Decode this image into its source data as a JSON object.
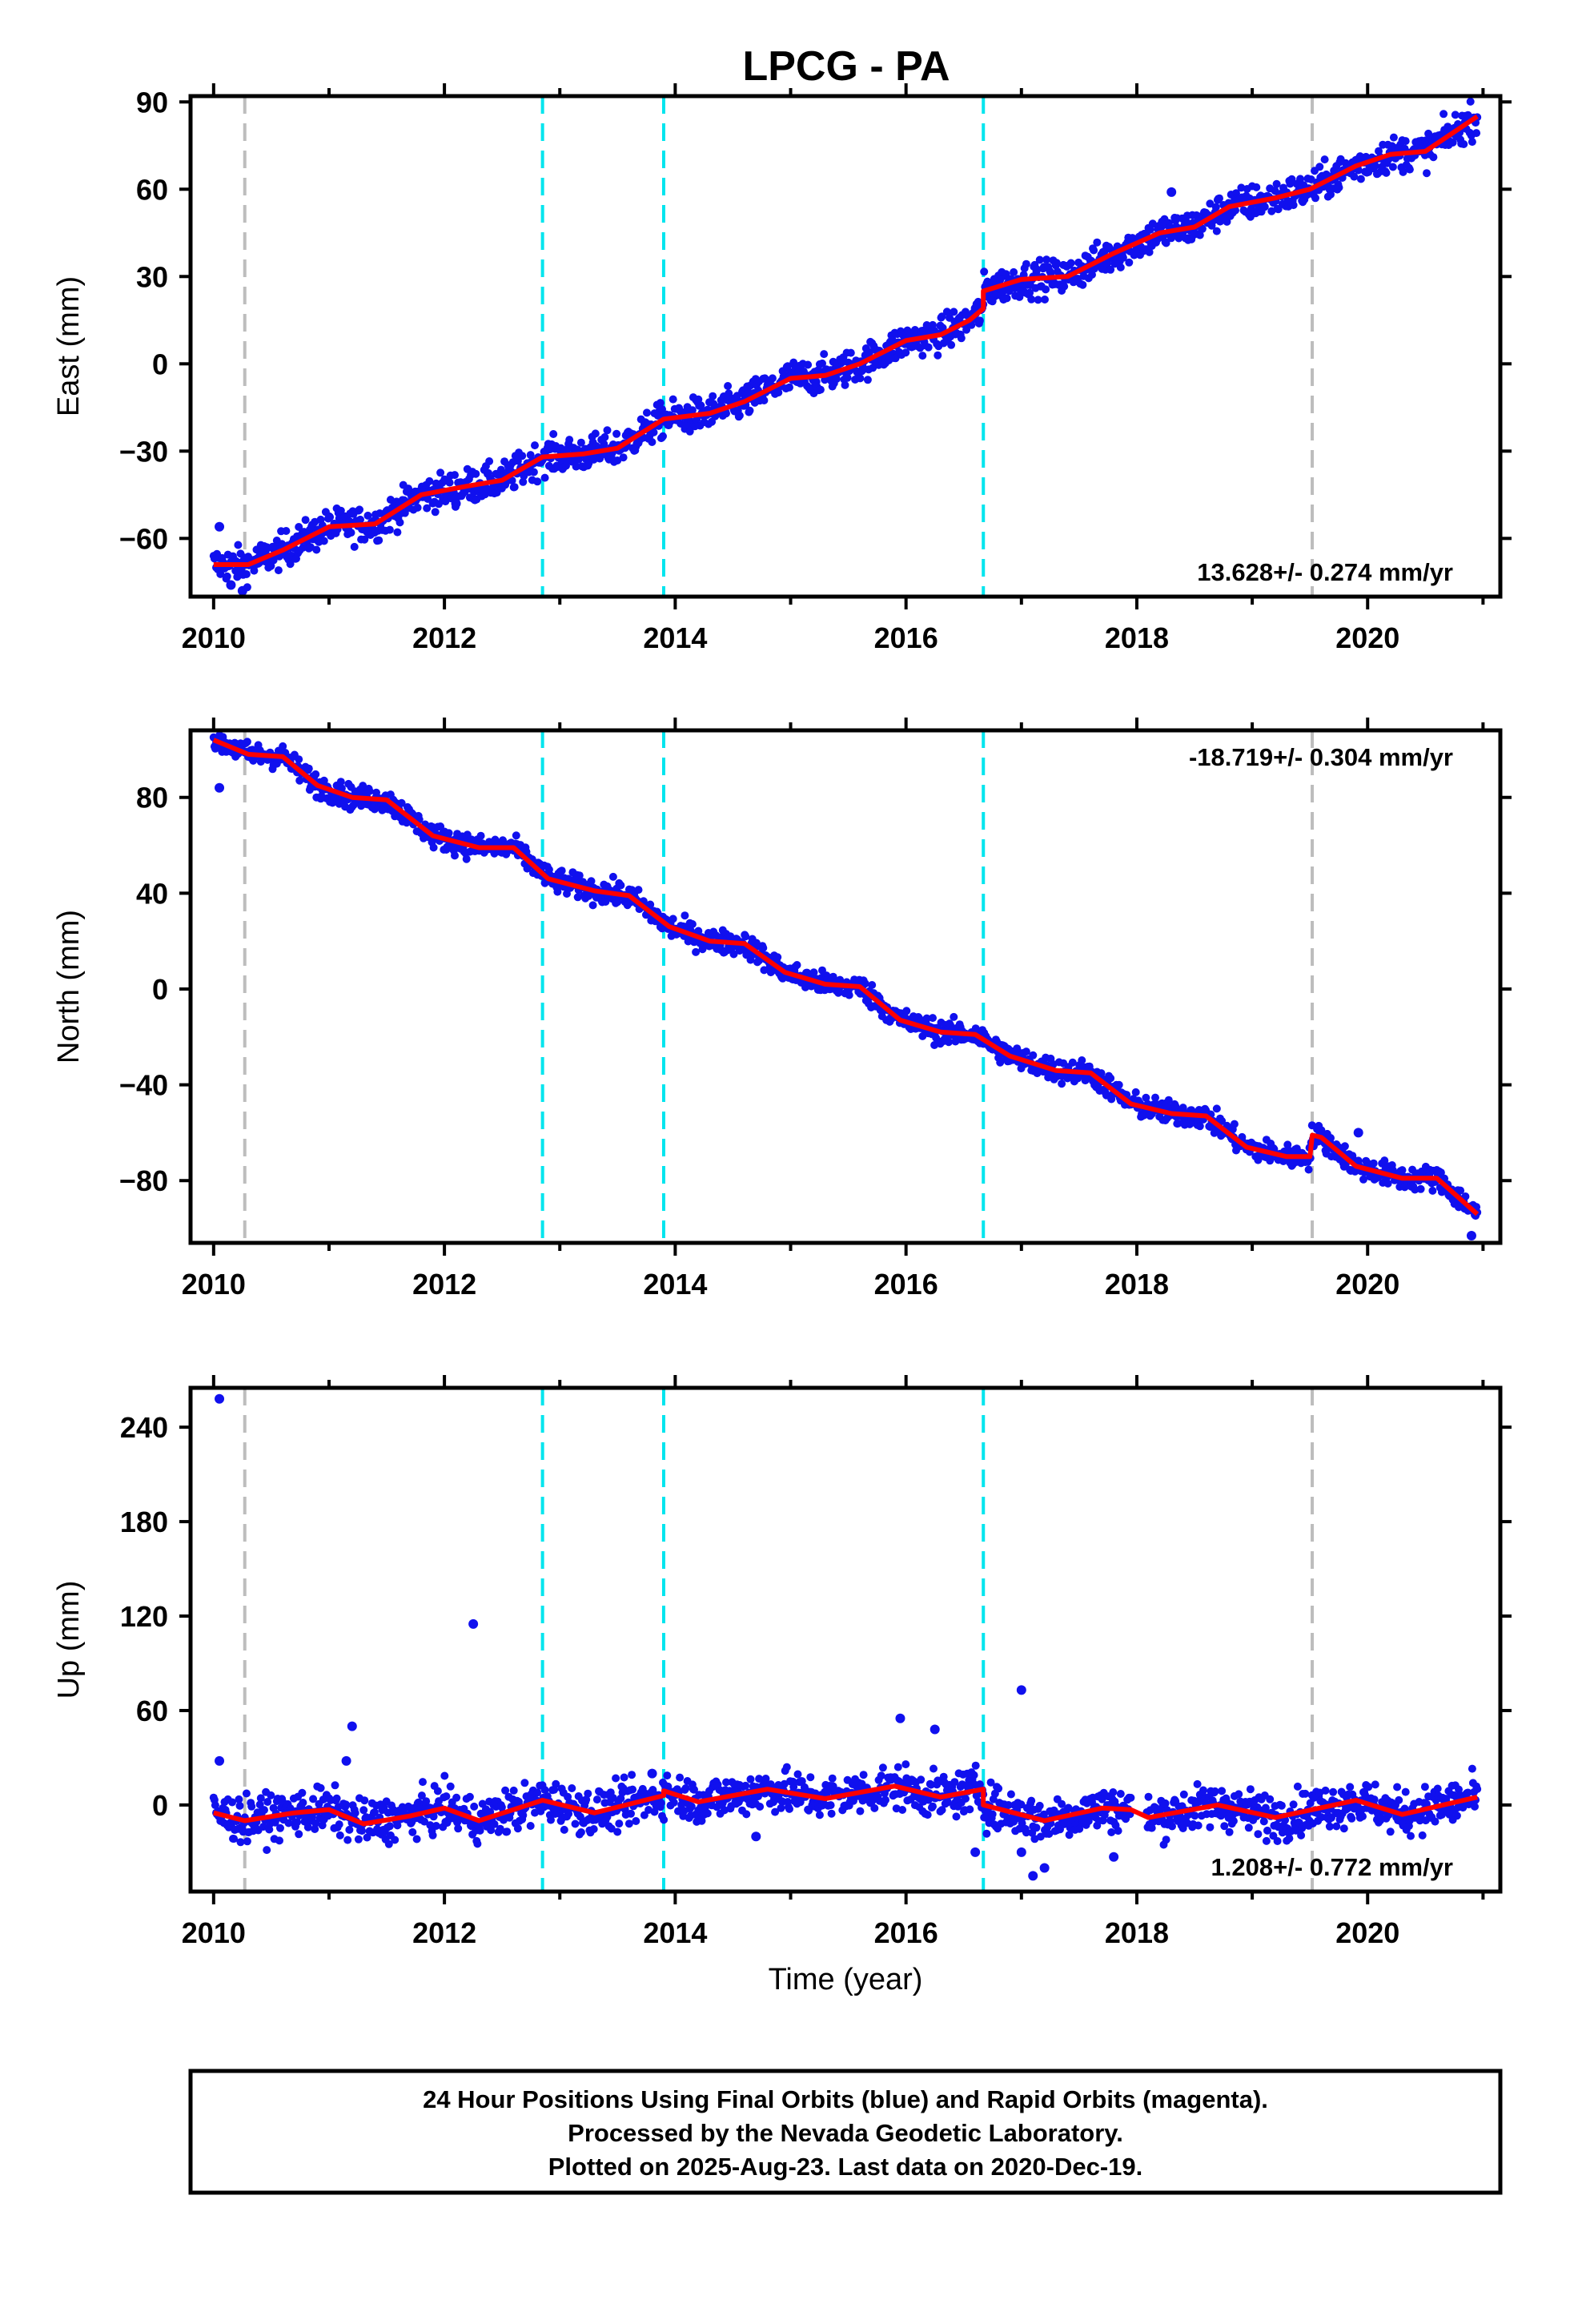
{
  "title": "LPCG - PA",
  "caption": {
    "lines": [
      "24 Hour Positions Using Final Orbits (blue) and Rapid Orbits (magenta).",
      "Processed by the Nevada Geodetic Laboratory.",
      "Plotted on 2025-Aug-23. Last data on 2020-Dec-19."
    ]
  },
  "colors": {
    "points": "#1010ee",
    "fit": "#ff0000",
    "equipment_change": "#00e5ee",
    "earthquake": "#bdbdbd"
  },
  "chart_data": [
    {
      "type": "scatter",
      "ylabel": "East (mm)",
      "xlabel": "",
      "xlim": [
        2009.8,
        2021.15
      ],
      "ylim": [
        -80,
        92
      ],
      "xticks": [
        "2010",
        "2012",
        "2014",
        "2016",
        "2018",
        "2020"
      ],
      "xtick_values": [
        2010,
        2012,
        2014,
        2016,
        2018,
        2020
      ],
      "yticks": [
        "−60",
        "−30",
        "0",
        "30",
        "60",
        "90"
      ],
      "ytick_values": [
        -60,
        -30,
        0,
        30,
        60,
        90
      ],
      "rate_text": "13.628+/- 0.274 mm/yr",
      "rate_position": "bottom-right",
      "noise": 3,
      "fit": [
        [
          2010.0,
          -69
        ],
        [
          2010.3,
          -69
        ],
        [
          2010.6,
          -64
        ],
        [
          2011.0,
          -56
        ],
        [
          2011.4,
          -55
        ],
        [
          2011.8,
          -45
        ],
        [
          2012.2,
          -42
        ],
        [
          2012.5,
          -40
        ],
        [
          2012.85,
          -32
        ],
        [
          2013.2,
          -31
        ],
        [
          2013.5,
          -29
        ],
        [
          2013.9,
          -19
        ],
        [
          2014.3,
          -17
        ],
        [
          2014.6,
          -13
        ],
        [
          2015.0,
          -5
        ],
        [
          2015.3,
          -4
        ],
        [
          2015.6,
          0
        ],
        [
          2016.0,
          8
        ],
        [
          2016.3,
          10
        ],
        [
          2016.55,
          15
        ],
        [
          2016.67,
          19
        ],
        [
          2016.67,
          25
        ],
        [
          2017.0,
          29
        ],
        [
          2017.4,
          30
        ],
        [
          2017.8,
          38
        ],
        [
          2018.2,
          45
        ],
        [
          2018.5,
          47
        ],
        [
          2018.8,
          54
        ],
        [
          2019.2,
          57
        ],
        [
          2019.5,
          60
        ],
        [
          2019.9,
          68
        ],
        [
          2020.2,
          72
        ],
        [
          2020.5,
          73
        ],
        [
          2020.95,
          85
        ]
      ],
      "outliers": [
        [
          2010.05,
          -56
        ],
        [
          2010.15,
          -76
        ],
        [
          2010.25,
          -78
        ],
        [
          2018.3,
          59
        ],
        [
          2012.1,
          -48
        ]
      ],
      "vlines": [
        {
          "x": 2010.27,
          "kind": "earthquake"
        },
        {
          "x": 2012.85,
          "kind": "equipment_change"
        },
        {
          "x": 2013.9,
          "kind": "equipment_change"
        },
        {
          "x": 2016.67,
          "kind": "equipment_change"
        },
        {
          "x": 2019.52,
          "kind": "earthquake"
        }
      ]
    },
    {
      "type": "scatter",
      "ylabel": "North (mm)",
      "xlabel": "",
      "xlim": [
        2009.8,
        2021.15
      ],
      "ylim": [
        -106,
        108
      ],
      "xticks": [
        "2010",
        "2012",
        "2014",
        "2016",
        "2018",
        "2020"
      ],
      "xtick_values": [
        2010,
        2012,
        2014,
        2016,
        2018,
        2020
      ],
      "yticks": [
        "−80",
        "−40",
        "0",
        "40",
        "80"
      ],
      "ytick_values": [
        -80,
        -40,
        0,
        40,
        80
      ],
      "rate_text": "-18.719+/- 0.304 mm/yr",
      "rate_position": "top-right",
      "noise": 2.5,
      "fit": [
        [
          2010.0,
          104
        ],
        [
          2010.3,
          98
        ],
        [
          2010.6,
          97
        ],
        [
          2010.9,
          85
        ],
        [
          2011.2,
          80
        ],
        [
          2011.5,
          79
        ],
        [
          2011.9,
          64
        ],
        [
          2012.3,
          59
        ],
        [
          2012.6,
          59
        ],
        [
          2012.9,
          46
        ],
        [
          2013.3,
          41
        ],
        [
          2013.6,
          39
        ],
        [
          2013.95,
          26
        ],
        [
          2014.3,
          20
        ],
        [
          2014.6,
          19
        ],
        [
          2014.95,
          7
        ],
        [
          2015.3,
          2
        ],
        [
          2015.6,
          1
        ],
        [
          2015.95,
          -13
        ],
        [
          2016.3,
          -18
        ],
        [
          2016.6,
          -19
        ],
        [
          2016.9,
          -28
        ],
        [
          2017.3,
          -34
        ],
        [
          2017.6,
          -35
        ],
        [
          2017.95,
          -48
        ],
        [
          2018.3,
          -52
        ],
        [
          2018.6,
          -53
        ],
        [
          2018.95,
          -66
        ],
        [
          2019.3,
          -70
        ],
        [
          2019.5,
          -70
        ],
        [
          2019.52,
          -61
        ],
        [
          2019.6,
          -62
        ],
        [
          2019.9,
          -74
        ],
        [
          2020.3,
          -79
        ],
        [
          2020.6,
          -79
        ],
        [
          2020.95,
          -94
        ]
      ],
      "outliers": [
        [
          2010.05,
          84
        ],
        [
          2020.9,
          -103
        ],
        [
          2019.92,
          -60
        ]
      ],
      "vlines": [
        {
          "x": 2010.27,
          "kind": "earthquake"
        },
        {
          "x": 2012.85,
          "kind": "equipment_change"
        },
        {
          "x": 2013.9,
          "kind": "equipment_change"
        },
        {
          "x": 2016.67,
          "kind": "equipment_change"
        },
        {
          "x": 2019.52,
          "kind": "earthquake"
        }
      ]
    },
    {
      "type": "scatter",
      "ylabel": "Up (mm)",
      "xlabel": "Time (year)",
      "xlim": [
        2009.8,
        2021.15
      ],
      "ylim": [
        -55,
        265
      ],
      "xticks": [
        "2010",
        "2012",
        "2014",
        "2016",
        "2018",
        "2020"
      ],
      "xtick_values": [
        2010,
        2012,
        2014,
        2016,
        2018,
        2020
      ],
      "yticks": [
        "0",
        "60",
        "120",
        "180",
        "240"
      ],
      "ytick_values": [
        0,
        60,
        120,
        180,
        240
      ],
      "rate_text": "1.208+/- 0.772 mm/yr",
      "rate_position": "bottom-right",
      "noise": 7,
      "gaps": [
        [
          2017.95,
          2018.08
        ]
      ],
      "fit": [
        [
          2010.0,
          -5
        ],
        [
          2010.27,
          -10
        ],
        [
          2010.7,
          -5
        ],
        [
          2011.0,
          -3
        ],
        [
          2011.3,
          -12
        ],
        [
          2011.7,
          -7
        ],
        [
          2012.0,
          -2
        ],
        [
          2012.3,
          -10
        ],
        [
          2012.85,
          3
        ],
        [
          2013.3,
          -5
        ],
        [
          2013.9,
          6
        ],
        [
          2013.9,
          9
        ],
        [
          2014.2,
          2
        ],
        [
          2014.8,
          10
        ],
        [
          2015.3,
          4
        ],
        [
          2015.9,
          12
        ],
        [
          2016.3,
          5
        ],
        [
          2016.67,
          10
        ],
        [
          2016.67,
          0
        ],
        [
          2017.2,
          -10
        ],
        [
          2017.7,
          -2
        ],
        [
          2017.95,
          -3
        ],
        [
          2018.1,
          -8
        ],
        [
          2018.7,
          0
        ],
        [
          2019.2,
          -8
        ],
        [
          2019.9,
          3
        ],
        [
          2020.3,
          -6
        ],
        [
          2020.95,
          5
        ]
      ],
      "outliers": [
        [
          2010.05,
          258
        ],
        [
          2010.05,
          28
        ],
        [
          2011.2,
          50
        ],
        [
          2011.15,
          28
        ],
        [
          2012.25,
          115
        ],
        [
          2015.95,
          55
        ],
        [
          2016.25,
          48
        ],
        [
          2017.0,
          73
        ],
        [
          2017.1,
          -45
        ],
        [
          2017.2,
          -40
        ],
        [
          2017.0,
          -30
        ],
        [
          2017.8,
          -33
        ],
        [
          2016.6,
          -30
        ],
        [
          2013.8,
          20
        ],
        [
          2014.7,
          -20
        ]
      ],
      "vlines": [
        {
          "x": 2010.27,
          "kind": "earthquake"
        },
        {
          "x": 2012.85,
          "kind": "equipment_change"
        },
        {
          "x": 2013.9,
          "kind": "equipment_change"
        },
        {
          "x": 2016.67,
          "kind": "equipment_change"
        },
        {
          "x": 2019.52,
          "kind": "earthquake"
        }
      ]
    }
  ]
}
